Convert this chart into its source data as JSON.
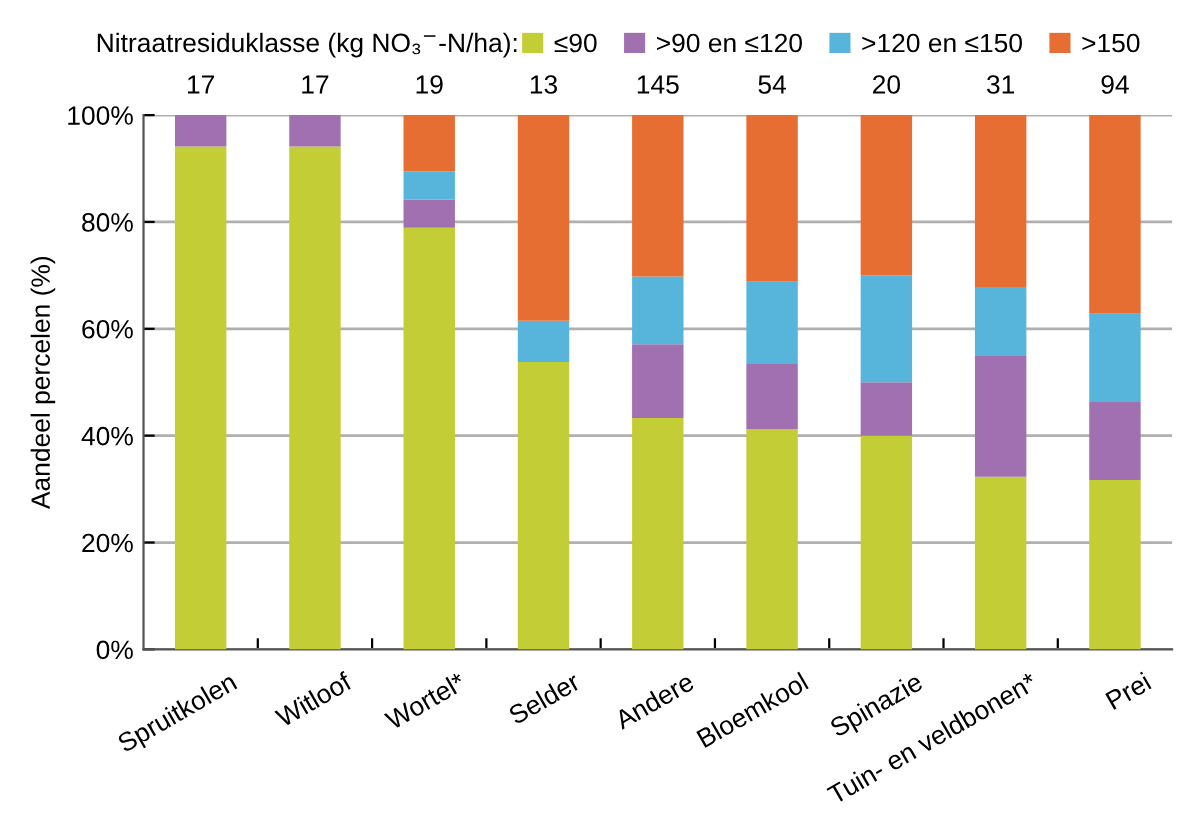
{
  "chart_data": {
    "type": "bar",
    "stacked": true,
    "legend_title": "Nitraatresiduklasse (kg NO₃$^{−}$-N/ha):",
    "ylabel": "Aandeel percelen (%)",
    "categories": [
      "Spruitkolen",
      "Witloof",
      "Wortel*",
      "Selder",
      "Andere",
      "Bloemkool",
      "Spinazie",
      "Tuin- en veldbonen*",
      "Prei"
    ],
    "series": [
      {
        "name": "≤90",
        "color": "#c3cd35",
        "values": [
          94.1,
          94.1,
          78.9,
          53.8,
          43.3,
          41.2,
          40,
          32.3,
          31.7
        ]
      },
      {
        "name": ">90 en ≤120",
        "color": "#a070b0",
        "values": [
          5.9,
          5.9,
          5.3,
          0,
          13.8,
          12.2,
          10,
          22.6,
          14.6
        ]
      },
      {
        "name": ">120 en ≤150",
        "color": "#57b5dc",
        "values": [
          0,
          0,
          5.3,
          7.7,
          12.7,
          15.4,
          20,
          12.9,
          16.5
        ]
      },
      {
        "name": ">150",
        "color": "#e76e33",
        "values": [
          0,
          0,
          10.5,
          38.5,
          30.2,
          31.2,
          30,
          32.3,
          37.2
        ]
      }
    ],
    "annotations": [
      "17",
      "17",
      "19",
      "13",
      "145",
      "54",
      "20",
      "31",
      "94"
    ],
    "ylim": [
      0,
      100
    ],
    "yticks": [
      {
        "value": 0,
        "label": "0%"
      },
      {
        "value": 20,
        "label": "20%"
      },
      {
        "value": 40,
        "label": "40%"
      },
      {
        "value": 60,
        "label": "60%"
      },
      {
        "value": 80,
        "label": "80%"
      },
      {
        "value": 100,
        "label": "100%"
      }
    ],
    "grid": "y",
    "legend": "top"
  }
}
